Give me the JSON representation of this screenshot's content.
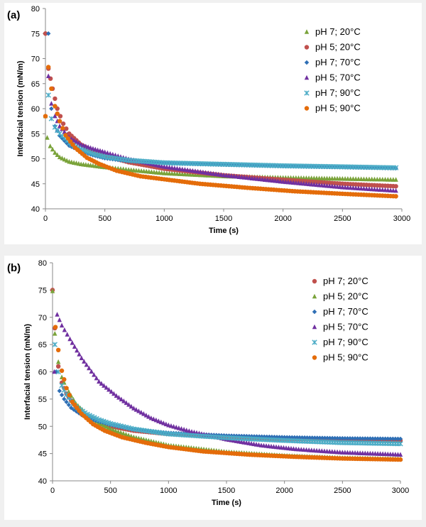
{
  "chart_data": [
    {
      "type": "scatter",
      "panel_label": "(a)",
      "xlabel": "Time (s)",
      "ylabel": "Interfacial tension (mN/m)",
      "xlim": [
        0,
        3000
      ],
      "ylim": [
        40,
        80
      ],
      "xticks": [
        0,
        500,
        1000,
        1500,
        2000,
        2500,
        3000
      ],
      "yticks": [
        40,
        45,
        50,
        55,
        60,
        65,
        70,
        75,
        80
      ],
      "grid": false,
      "legend_position": "top-right",
      "series": [
        {
          "name": "pH 7; 20°C",
          "marker": "triangle",
          "color": "#7aa33a",
          "points": [
            [
              0,
              58.5
            ],
            [
              15,
              54.2
            ],
            [
              40,
              52.5
            ],
            [
              80,
              51.2
            ],
            [
              120,
              50.3
            ],
            [
              200,
              49.4
            ],
            [
              300,
              48.9
            ],
            [
              400,
              48.6
            ],
            [
              500,
              48.3
            ],
            [
              700,
              47.8
            ],
            [
              1000,
              47.1
            ],
            [
              1500,
              46.5
            ],
            [
              2000,
              46.2
            ],
            [
              2500,
              46.0
            ],
            [
              2950,
              45.8
            ]
          ]
        },
        {
          "name": "pH 5; 20°C",
          "marker": "circle",
          "color": "#c0504d",
          "points": [
            [
              0,
              75.0
            ],
            [
              25,
              68.0
            ],
            [
              60,
              64.0
            ],
            [
              100,
              60.0
            ],
            [
              150,
              57.0
            ],
            [
              200,
              55.0
            ],
            [
              300,
              52.8
            ],
            [
              400,
              51.5
            ],
            [
              500,
              50.6
            ],
            [
              700,
              49.3
            ],
            [
              1000,
              48.0
            ],
            [
              1500,
              46.7
            ],
            [
              2000,
              45.8
            ],
            [
              2500,
              45.0
            ],
            [
              2950,
              44.5
            ]
          ]
        },
        {
          "name": "pH 7; 70°C",
          "marker": "diamond",
          "color": "#2f6fb5",
          "points": [
            [
              25,
              75.0
            ],
            [
              50,
              60.0
            ],
            [
              80,
              56.5
            ],
            [
              120,
              54.6
            ],
            [
              200,
              52.6
            ],
            [
              300,
              51.5
            ],
            [
              400,
              50.7
            ],
            [
              500,
              50.1
            ],
            [
              700,
              49.5
            ],
            [
              1000,
              49.1
            ],
            [
              1500,
              48.8
            ],
            [
              2000,
              48.5
            ],
            [
              2500,
              48.3
            ],
            [
              2950,
              48.1
            ]
          ]
        },
        {
          "name": "pH 5; 70°C",
          "marker": "triangle",
          "color": "#7030a0",
          "points": [
            [
              25,
              66.5
            ],
            [
              50,
              61.0
            ],
            [
              80,
              58.5
            ],
            [
              120,
              56.5
            ],
            [
              200,
              54.2
            ],
            [
              300,
              52.8
            ],
            [
              400,
              52.0
            ],
            [
              500,
              51.3
            ],
            [
              700,
              49.9
            ],
            [
              1000,
              48.4
            ],
            [
              1500,
              46.7
            ],
            [
              2000,
              45.4
            ],
            [
              2500,
              44.3
            ],
            [
              2950,
              43.6
            ]
          ]
        },
        {
          "name": "pH 7; 90°C",
          "marker": "cross",
          "color": "#4bacc6",
          "points": [
            [
              25,
              62.7
            ],
            [
              50,
              58.0
            ],
            [
              80,
              56.3
            ],
            [
              120,
              55.0
            ],
            [
              200,
              53.1
            ],
            [
              300,
              51.9
            ],
            [
              400,
              51.0
            ],
            [
              500,
              50.4
            ],
            [
              700,
              49.7
            ],
            [
              1000,
              49.2
            ],
            [
              1500,
              48.9
            ],
            [
              2000,
              48.6
            ],
            [
              2500,
              48.4
            ],
            [
              2950,
              48.2
            ]
          ]
        },
        {
          "name": "pH 5; 90°C",
          "marker": "circle",
          "color": "#e46c0a",
          "points": [
            [
              0,
              58.5
            ],
            [
              25,
              68.3
            ],
            [
              50,
              64.0
            ],
            [
              80,
              60.5
            ],
            [
              120,
              57.5
            ],
            [
              170,
              54.7
            ],
            [
              250,
              52.2
            ],
            [
              350,
              50.2
            ],
            [
              450,
              49.0
            ],
            [
              600,
              47.6
            ],
            [
              800,
              46.5
            ],
            [
              1000,
              45.9
            ],
            [
              1300,
              45.0
            ],
            [
              1700,
              44.2
            ],
            [
              2100,
              43.5
            ],
            [
              2500,
              43.0
            ],
            [
              2950,
              42.5
            ]
          ]
        }
      ]
    },
    {
      "type": "scatter",
      "panel_label": "(b)",
      "xlabel": "Time (s)",
      "ylabel": "Interfacial tension (mN/m)",
      "xlim": [
        0,
        3000
      ],
      "ylim": [
        40,
        80
      ],
      "xticks": [
        0,
        500,
        1000,
        1500,
        2000,
        2500,
        3000
      ],
      "yticks": [
        40,
        45,
        50,
        55,
        60,
        65,
        70,
        75,
        80
      ],
      "grid": false,
      "legend_position": "top-right",
      "series": [
        {
          "name": "pH 7; 20°C",
          "marker": "circle",
          "color": "#c0504d",
          "points": [
            [
              0,
              75.0
            ],
            [
              20,
              68.0
            ],
            [
              50,
              61.0
            ],
            [
              80,
              58.0
            ],
            [
              120,
              56.0
            ],
            [
              200,
              53.5
            ],
            [
              300,
              51.8
            ],
            [
              400,
              50.8
            ],
            [
              500,
              50.0
            ],
            [
              700,
              49.2
            ],
            [
              1000,
              48.6
            ],
            [
              1500,
              48.0
            ],
            [
              2000,
              47.7
            ],
            [
              2500,
              47.5
            ],
            [
              3000,
              47.4
            ]
          ]
        },
        {
          "name": "pH 5; 20°C",
          "marker": "triangle",
          "color": "#7aa33a",
          "points": [
            [
              0,
              74.8
            ],
            [
              20,
              67.0
            ],
            [
              50,
              61.8
            ],
            [
              80,
              59.0
            ],
            [
              120,
              57.0
            ],
            [
              200,
              54.2
            ],
            [
              300,
              52.0
            ],
            [
              400,
              50.6
            ],
            [
              500,
              49.5
            ],
            [
              700,
              48.0
            ],
            [
              1000,
              46.5
            ],
            [
              1500,
              45.3
            ],
            [
              2000,
              44.6
            ],
            [
              2500,
              44.2
            ],
            [
              3000,
              44.0
            ]
          ]
        },
        {
          "name": "pH 7; 70°C",
          "marker": "diamond",
          "color": "#2f6fb5",
          "points": [
            [
              30,
              60.0
            ],
            [
              60,
              56.5
            ],
            [
              100,
              55.0
            ],
            [
              160,
              53.4
            ],
            [
              250,
              52.1
            ],
            [
              350,
              51.2
            ],
            [
              500,
              50.3
            ],
            [
              700,
              49.4
            ],
            [
              1000,
              48.8
            ],
            [
              1500,
              48.3
            ],
            [
              2000,
              48.0
            ],
            [
              2500,
              47.8
            ],
            [
              3000,
              47.7
            ]
          ]
        },
        {
          "name": "pH 5; 70°C",
          "marker": "triangle",
          "color": "#7030a0",
          "points": [
            [
              15,
              60.0
            ],
            [
              40,
              70.5
            ],
            [
              80,
              68.5
            ],
            [
              150,
              66.0
            ],
            [
              250,
              62.5
            ],
            [
              400,
              58.2
            ],
            [
              550,
              55.6
            ],
            [
              700,
              53.3
            ],
            [
              850,
              51.5
            ],
            [
              1000,
              50.2
            ],
            [
              1200,
              49.0
            ],
            [
              1500,
              47.6
            ],
            [
              1800,
              46.5
            ],
            [
              2100,
              45.8
            ],
            [
              2500,
              45.2
            ],
            [
              3000,
              44.8
            ]
          ]
        },
        {
          "name": "pH 7; 90°C",
          "marker": "cross",
          "color": "#4bacc6",
          "points": [
            [
              20,
              65.0
            ],
            [
              50,
              60.0
            ],
            [
              80,
              57.5
            ],
            [
              120,
              55.8
            ],
            [
              200,
              53.6
            ],
            [
              300,
              52.2
            ],
            [
              400,
              51.2
            ],
            [
              500,
              50.5
            ],
            [
              700,
              49.5
            ],
            [
              1000,
              48.6
            ],
            [
              1500,
              47.9
            ],
            [
              2000,
              47.4
            ],
            [
              2500,
              47.0
            ],
            [
              3000,
              46.8
            ]
          ]
        },
        {
          "name": "pH 5; 90°C",
          "marker": "circle",
          "color": "#e46c0a",
          "points": [
            [
              25,
              68.2
            ],
            [
              50,
              64.0
            ],
            [
              80,
              60.2
            ],
            [
              120,
              57.0
            ],
            [
              170,
              54.5
            ],
            [
              250,
              52.3
            ],
            [
              350,
              50.4
            ],
            [
              450,
              49.2
            ],
            [
              600,
              48.0
            ],
            [
              800,
              47.0
            ],
            [
              1000,
              46.2
            ],
            [
              1300,
              45.4
            ],
            [
              1700,
              44.8
            ],
            [
              2100,
              44.4
            ],
            [
              2500,
              44.1
            ],
            [
              3000,
              43.9
            ]
          ]
        }
      ]
    }
  ]
}
